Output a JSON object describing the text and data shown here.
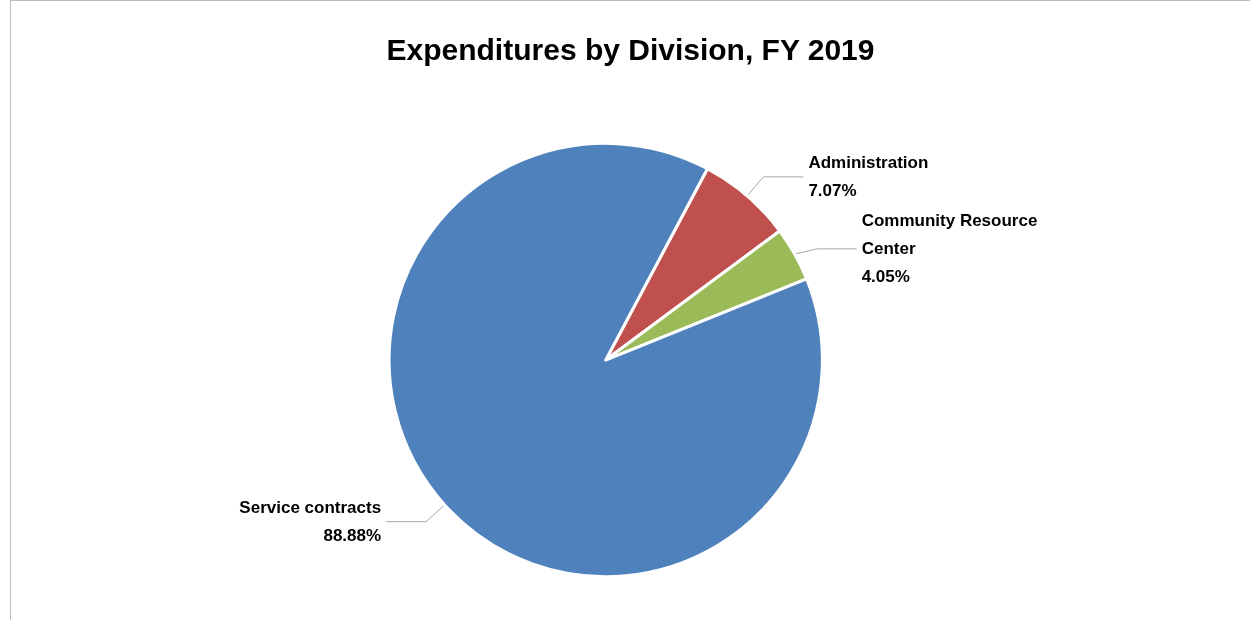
{
  "chart_data": {
    "type": "pie",
    "title": "Expenditures by Division, FY 2019",
    "categories": [
      "Administration",
      "Community Resource Center",
      "Service contracts"
    ],
    "values": [
      7.07,
      4.05,
      88.88
    ],
    "colors": [
      "#c0504d",
      "#9bbb59",
      "#4f81bd"
    ],
    "value_labels": [
      "7.07%",
      "4.05%",
      "88.88%"
    ],
    "legend": false
  }
}
